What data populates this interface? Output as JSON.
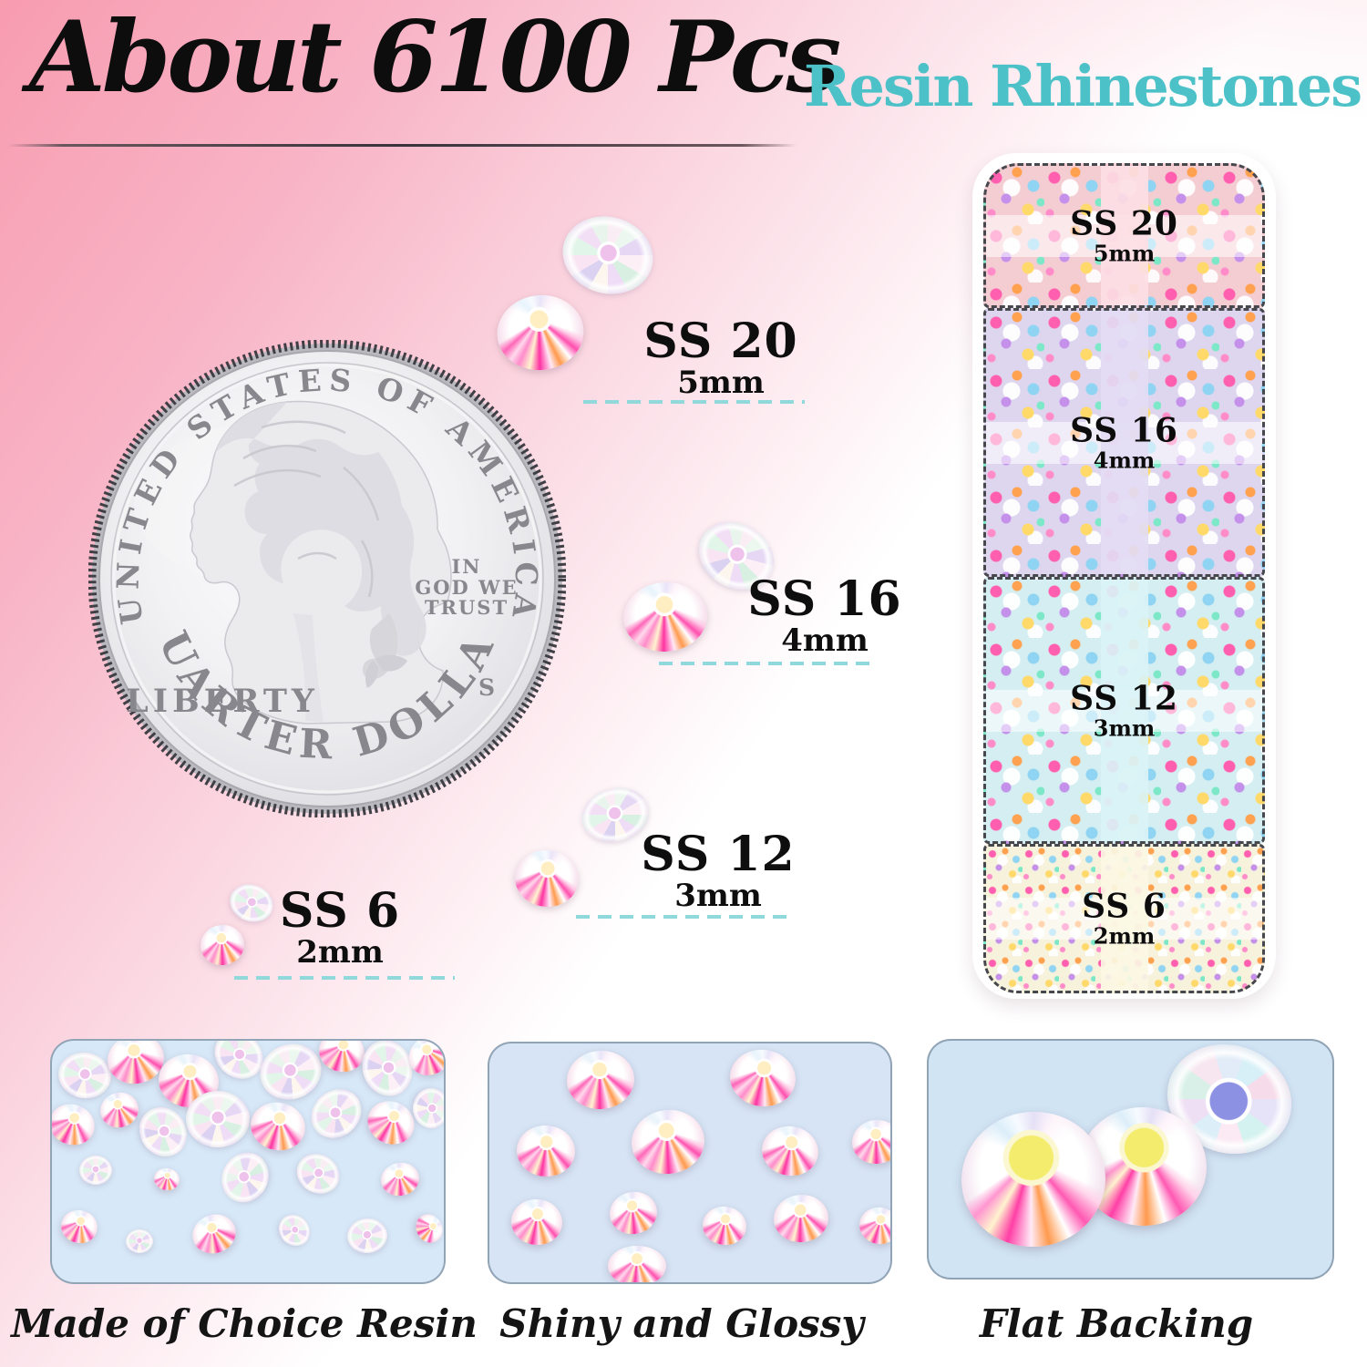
{
  "title": {
    "main": "About 6100 Pcs",
    "accent": "Resin Rhinestones"
  },
  "sizes": [
    {
      "name": "SS 20",
      "mm": "5mm"
    },
    {
      "name": "SS 16",
      "mm": "4mm"
    },
    {
      "name": "SS 12",
      "mm": "3mm"
    },
    {
      "name": "SS 6",
      "mm": "2mm"
    }
  ],
  "coin": {
    "top": "UNITED STATES OF AMERICA",
    "bottom": "QUARTER DOLLAR",
    "left": "LIBERTY",
    "motto1": "IN",
    "motto2": "GOD WE",
    "motto3": "TRUST",
    "mint": "S"
  },
  "features": [
    {
      "caption": "Made of Choice Resin"
    },
    {
      "caption": "Shiny and Glossy"
    },
    {
      "caption": "Flat Backing"
    }
  ],
  "colors": {
    "accent_teal": "#4cc2c8",
    "background_pink": "#f89cb0",
    "dash_teal": "#8fd8dc",
    "box_section_pink": "#f4cdd3",
    "box_section_lavender": "#ded6ef",
    "box_section_cyan": "#d4eef1",
    "box_section_cream": "#f7f2dc"
  }
}
